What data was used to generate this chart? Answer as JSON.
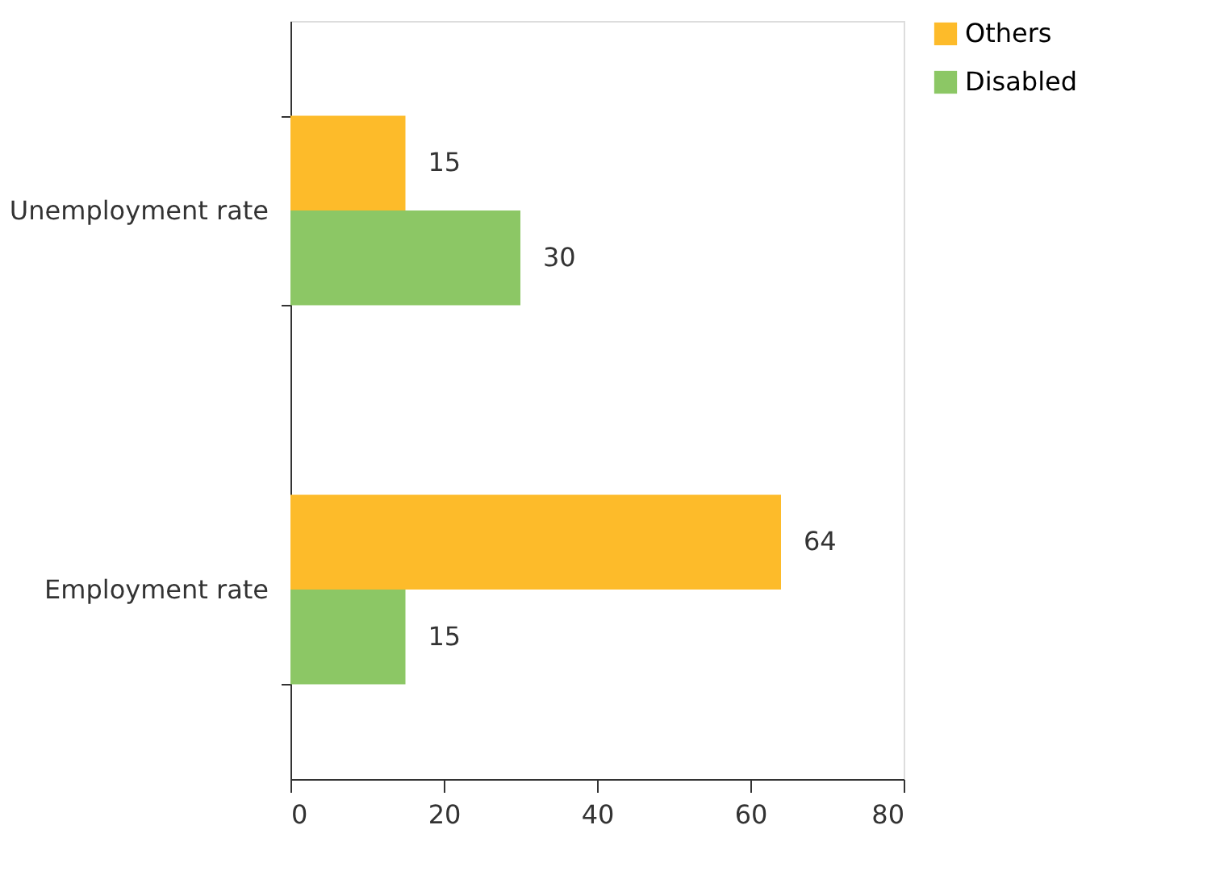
{
  "chart_data": {
    "type": "bar",
    "orientation": "horizontal",
    "categories": [
      "Unemployment rate",
      "Employment rate"
    ],
    "series": [
      {
        "name": "Others",
        "color": "#fdbb2a",
        "values": [
          15,
          64
        ]
      },
      {
        "name": "Disabled",
        "color": "#8cc765",
        "values": [
          30,
          15
        ]
      }
    ],
    "xlim": [
      0,
      80
    ],
    "xticks": [
      0,
      20,
      40,
      60,
      80
    ],
    "data_labels": true,
    "grid": false,
    "legend": "right"
  }
}
